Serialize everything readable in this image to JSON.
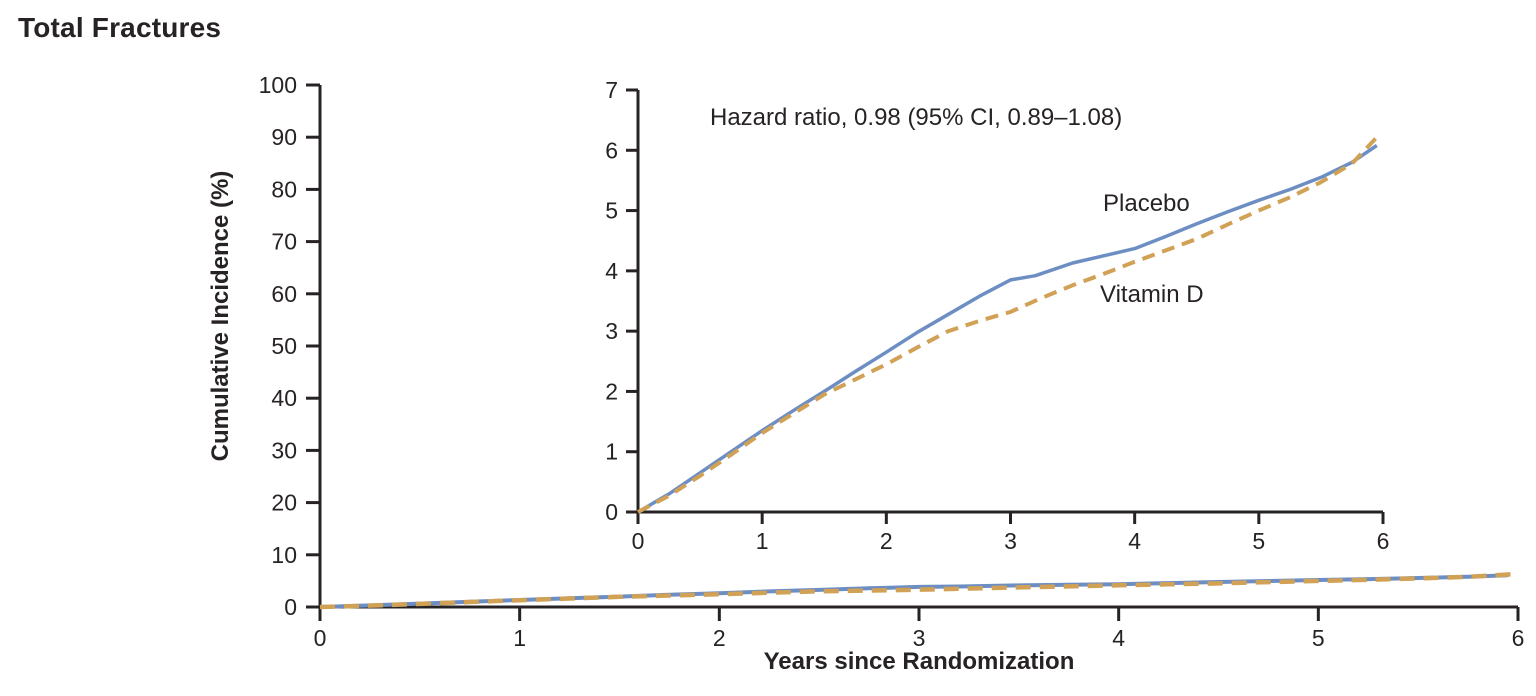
{
  "chart_data": {
    "type": "line",
    "title": "Total Fractures",
    "xlabel": "Years since Randomization",
    "ylabel": "Cumulative Incidence (%)",
    "annotation": "Hazard ratio, 0.98 (95% CI, 0.89–1.08)",
    "legend_position": "inline-labels-on-inset",
    "grid": false,
    "main_axes": {
      "xlim": [
        0,
        6
      ],
      "ylim": [
        0,
        100
      ],
      "x_ticks": [
        0,
        1,
        2,
        3,
        4,
        5,
        6
      ],
      "y_ticks": [
        0,
        10,
        20,
        30,
        40,
        50,
        60,
        70,
        80,
        90,
        100
      ]
    },
    "inset_axes": {
      "xlim": [
        0,
        6
      ],
      "ylim": [
        0,
        7
      ],
      "x_ticks": [
        0,
        1,
        2,
        3,
        4,
        5,
        6
      ],
      "y_ticks": [
        0,
        1,
        2,
        3,
        4,
        5,
        6,
        7
      ]
    },
    "series": [
      {
        "name": "Placebo",
        "line_style": "solid",
        "color": "#6d8ec3",
        "x": [
          0,
          0.25,
          0.5,
          0.75,
          1,
          1.25,
          1.5,
          1.75,
          2,
          2.25,
          2.5,
          2.75,
          3,
          3.2,
          3.5,
          3.75,
          4,
          4.25,
          4.5,
          4.75,
          5,
          5.25,
          5.5,
          5.75,
          5.95
        ],
        "y": [
          0,
          0.3,
          0.65,
          1.0,
          1.35,
          1.68,
          2.0,
          2.33,
          2.65,
          2.98,
          3.28,
          3.58,
          3.85,
          3.92,
          4.13,
          4.25,
          4.37,
          4.57,
          4.78,
          4.98,
          5.17,
          5.35,
          5.55,
          5.8,
          6.08
        ]
      },
      {
        "name": "Vitamin D",
        "line_style": "dashed",
        "color": "#d1a155",
        "x": [
          0,
          0.25,
          0.5,
          0.75,
          1,
          1.25,
          1.5,
          1.75,
          2,
          2.25,
          2.5,
          2.75,
          3,
          3.25,
          3.5,
          3.75,
          4,
          4.25,
          4.5,
          4.75,
          5,
          5.25,
          5.5,
          5.75,
          5.98
        ],
        "y": [
          0,
          0.27,
          0.6,
          0.95,
          1.31,
          1.63,
          1.95,
          2.2,
          2.45,
          2.73,
          3.0,
          3.17,
          3.32,
          3.55,
          3.76,
          3.95,
          4.15,
          4.34,
          4.53,
          4.77,
          5.0,
          5.22,
          5.47,
          5.78,
          6.28
        ]
      }
    ],
    "colors": {
      "axis": "#272325",
      "text": "#272325"
    }
  }
}
